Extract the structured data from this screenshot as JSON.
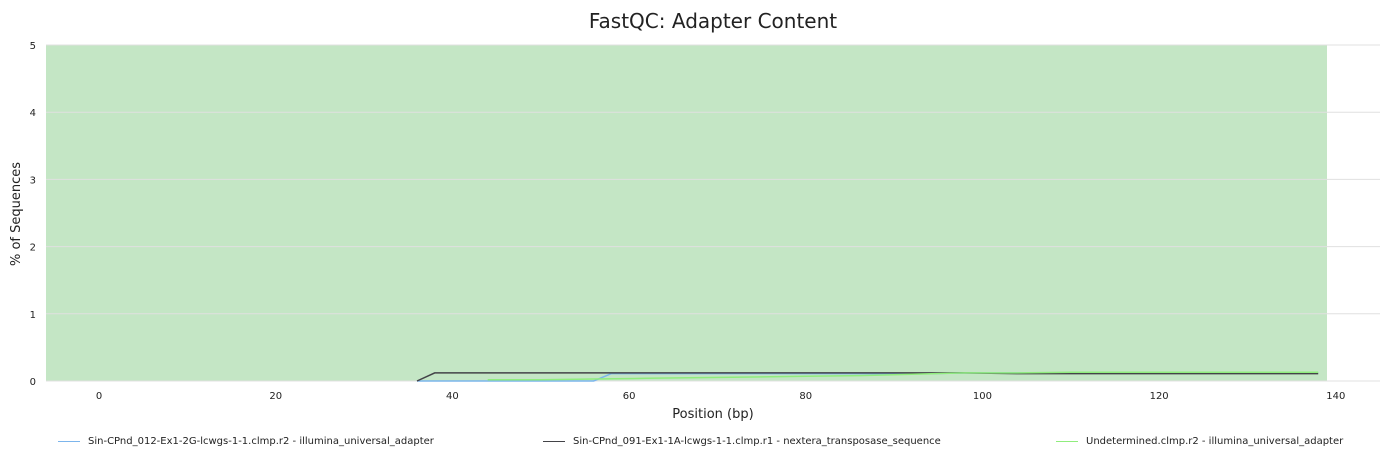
{
  "chart_data": {
    "type": "line",
    "title": "FastQC: Adapter Content",
    "xlabel": "Position (bp)",
    "ylabel": "% of Sequences",
    "xlim": [
      -6,
      145
    ],
    "ylim": [
      0,
      5
    ],
    "x_ticks": [
      0,
      20,
      40,
      60,
      80,
      100,
      120,
      140
    ],
    "y_ticks": [
      0,
      1,
      2,
      3,
      4,
      5
    ],
    "grid": true,
    "background_band": {
      "from_x": -6,
      "to_x": 139,
      "from_y": 0,
      "to_y": 5,
      "color": "#c4e6c5",
      "meaning": "pass"
    },
    "series": [
      {
        "name": "Sin-CPnd_012-Ex1-2G-lcwgs-1-1.clmp.r2 - illumina_universal_adapter",
        "color": "#7cb5ec",
        "x": [
          36,
          38,
          44,
          50,
          56,
          58,
          64,
          70,
          76,
          82,
          88,
          94,
          98,
          104,
          110,
          116,
          122,
          128,
          134,
          138
        ],
        "y": [
          0.0,
          0.0,
          0.0,
          0.0,
          0.0,
          0.11,
          0.11,
          0.11,
          0.11,
          0.11,
          0.11,
          0.11,
          0.12,
          0.12,
          0.12,
          0.12,
          0.12,
          0.12,
          0.12,
          0.12
        ]
      },
      {
        "name": "Sin-CPnd_091-Ex1-1A-lcwgs-1-1.clmp.r1 - nextera_transposase_sequence",
        "color": "#434348",
        "x": [
          36,
          38,
          44,
          50,
          56,
          62,
          68,
          74,
          80,
          86,
          92,
          98,
          104,
          110,
          116,
          122,
          128,
          134,
          138
        ],
        "y": [
          0.0,
          0.12,
          0.12,
          0.12,
          0.12,
          0.12,
          0.12,
          0.12,
          0.12,
          0.12,
          0.12,
          0.12,
          0.11,
          0.11,
          0.11,
          0.11,
          0.11,
          0.11,
          0.11
        ]
      },
      {
        "name": "Undetermined.clmp.r2 - illumina_universal_adapter",
        "color": "#90ed7d",
        "x": [
          44,
          50,
          56,
          62,
          68,
          74,
          80,
          86,
          92,
          98,
          104,
          110,
          116,
          122,
          128,
          134,
          138
        ],
        "y": [
          0.02,
          0.02,
          0.03,
          0.04,
          0.05,
          0.06,
          0.07,
          0.08,
          0.1,
          0.12,
          0.12,
          0.13,
          0.13,
          0.13,
          0.13,
          0.13,
          0.13
        ]
      }
    ]
  }
}
